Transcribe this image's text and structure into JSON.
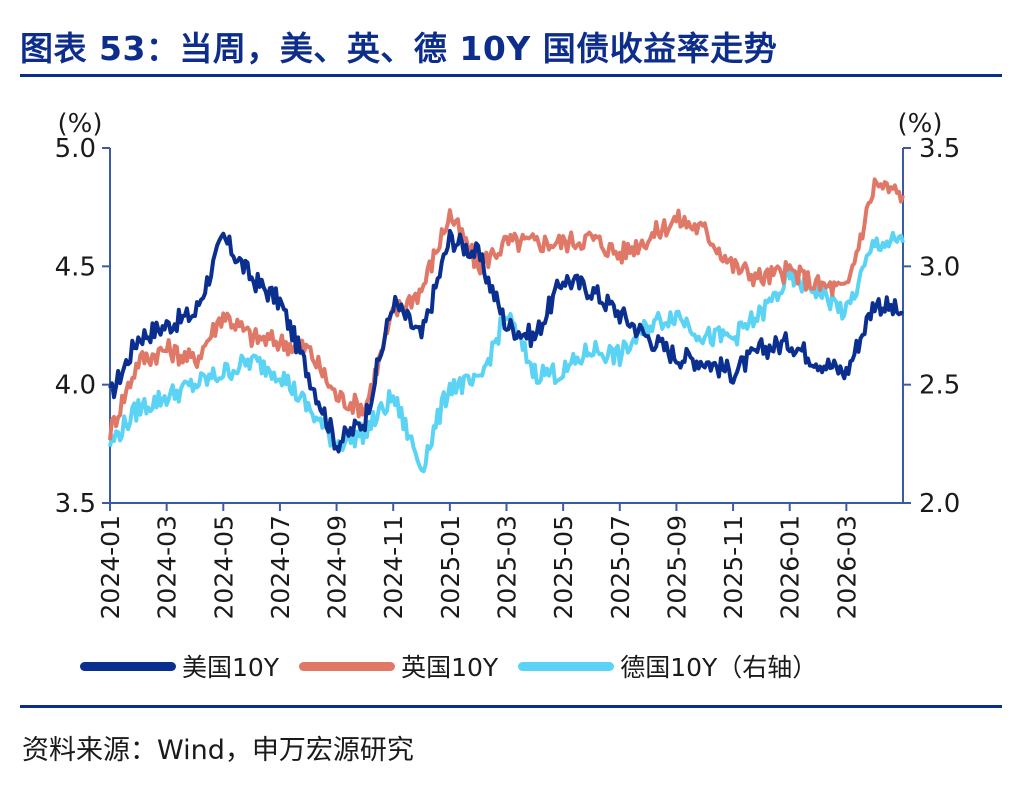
{
  "title": "图表 53：当周，美、英、德 10Y 国债收益率走势",
  "source": "资料来源：Wind，申万宏源研究",
  "colors": {
    "us": "#0a2f8f",
    "uk": "#e07868",
    "de": "#5bd3f5",
    "axis": "#3a5aa8",
    "title": "#0d2d8c"
  },
  "chart_data": {
    "type": "line",
    "left_axis": {
      "unit": "(%)",
      "ylim": [
        3.5,
        5.0
      ],
      "ticks": [
        "3.5",
        "4.0",
        "4.5",
        "5.0"
      ]
    },
    "right_axis": {
      "unit": "(%)",
      "ylim": [
        2.0,
        3.5
      ],
      "ticks": [
        "2.0",
        "2.5",
        "3.0",
        "3.5"
      ]
    },
    "x_ticks": [
      "2024-01",
      "2024-03",
      "2024-05",
      "2024-07",
      "2024-09",
      "2024-11",
      "2025-01",
      "2025-03",
      "2025-05",
      "2025-07",
      "2025-09",
      "2025-11",
      "2026-01",
      "2026-03"
    ],
    "x": [
      "2024-01",
      "2024-02",
      "2024-03",
      "2024-04",
      "2024-05",
      "2024-06",
      "2024-07",
      "2024-08",
      "2024-09",
      "2024-10",
      "2024-11",
      "2024-12",
      "2025-01",
      "2025-02",
      "2025-03",
      "2025-04",
      "2025-05",
      "2025-06",
      "2025-07",
      "2025-08",
      "2025-09",
      "2025-10",
      "2025-11",
      "2025-12",
      "2026-01",
      "2026-02",
      "2026-03",
      "2026-04",
      "2026-05"
    ],
    "series": [
      {
        "name": "美国10Y",
        "axis": "left",
        "values": [
          3.95,
          4.2,
          4.25,
          4.3,
          4.62,
          4.45,
          4.35,
          4.05,
          3.75,
          3.85,
          4.35,
          4.2,
          4.62,
          4.55,
          4.25,
          4.2,
          4.45,
          4.4,
          4.3,
          4.2,
          4.12,
          4.1,
          4.05,
          4.15,
          4.18,
          4.1,
          4.05,
          4.35,
          4.3
        ]
      },
      {
        "name": "英国10Y",
        "axis": "left",
        "values": [
          3.8,
          4.1,
          4.15,
          4.1,
          4.3,
          4.2,
          4.18,
          4.15,
          3.95,
          3.9,
          4.3,
          4.4,
          4.72,
          4.5,
          4.6,
          4.6,
          4.6,
          4.62,
          4.55,
          4.62,
          4.7,
          4.65,
          4.5,
          4.45,
          4.48,
          4.42,
          4.4,
          4.85,
          4.8
        ]
      },
      {
        "name": "德国10Y（右轴）",
        "axis": "right",
        "values": [
          2.25,
          2.4,
          2.45,
          2.5,
          2.55,
          2.6,
          2.55,
          2.4,
          2.25,
          2.3,
          2.45,
          2.15,
          2.5,
          2.5,
          2.8,
          2.55,
          2.55,
          2.65,
          2.62,
          2.75,
          2.8,
          2.7,
          2.7,
          2.8,
          2.95,
          2.9,
          2.8,
          3.1,
          3.1
        ]
      }
    ]
  }
}
